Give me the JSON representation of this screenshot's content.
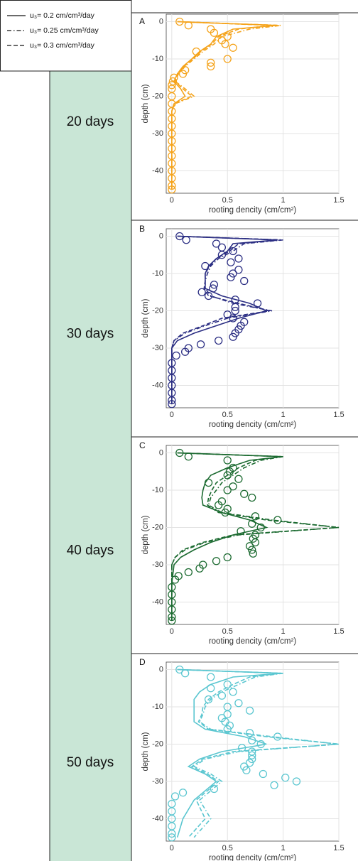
{
  "chart_data": [
    {
      "type": "line",
      "panel_label": "A",
      "days": "20 days",
      "color": "#f5a31a",
      "xlabel": "rooting dencity (cm/cm²)",
      "ylabel": "depth (cm)",
      "xlim": [
        -0.05,
        1.5
      ],
      "ylim": [
        -46,
        2
      ],
      "xticks": [
        0,
        0.5,
        1,
        1.5
      ],
      "yticks": [
        0,
        -10,
        -20,
        -30,
        -40
      ],
      "grid": true,
      "depth": [
        0,
        -1,
        -2,
        -4,
        -6,
        -8,
        -10,
        -12,
        -14,
        -16,
        -18,
        -20,
        -22,
        -24,
        -26,
        -28,
        -30,
        -35,
        -40,
        -45
      ],
      "series": [
        {
          "name": "u₃= 0.2 cm/cm³/day",
          "linestyle": "solid",
          "values": [
            0.05,
            0.95,
            0.55,
            0.4,
            0.35,
            0.25,
            0.18,
            0.1,
            0.05,
            0.02,
            0.08,
            0.12,
            0.02,
            0,
            0,
            0,
            0,
            0,
            0,
            0
          ]
        },
        {
          "name": "u₃= 0.25 cm/cm³/day",
          "linestyle": "dashdot",
          "values": [
            0.05,
            0.98,
            0.7,
            0.45,
            0.38,
            0.28,
            0.2,
            0.12,
            0.06,
            0.03,
            0.12,
            0.2,
            0.03,
            0,
            0,
            0,
            0,
            0,
            0,
            0
          ]
        },
        {
          "name": "u₃= 0.3 cm/cm³/day",
          "linestyle": "dashed",
          "values": [
            0.05,
            0.9,
            0.6,
            0.42,
            0.36,
            0.26,
            0.19,
            0.11,
            0.05,
            0.03,
            0.1,
            0.18,
            0.02,
            0,
            0,
            0,
            0,
            0,
            0,
            0
          ]
        }
      ],
      "observed": {
        "depth": [
          0,
          -1,
          -2,
          -3,
          -4,
          -5,
          -6,
          -7,
          -8,
          -10,
          -11,
          -12,
          -13,
          -14,
          -15,
          -16,
          -17,
          -18,
          -20,
          -22,
          -24,
          -26,
          -28,
          -30,
          -32,
          -34,
          -36,
          -38,
          -40,
          -42,
          -44,
          -45
        ],
        "values": [
          0.07,
          0.15,
          0.35,
          0.38,
          0.5,
          0.45,
          0.48,
          0.55,
          0.22,
          0.5,
          0.35,
          0.35,
          0.12,
          0.1,
          0.02,
          0.01,
          0,
          0,
          0,
          0,
          0,
          0,
          0,
          0,
          0,
          0,
          0,
          0,
          0,
          0,
          0,
          0
        ]
      }
    },
    {
      "type": "line",
      "panel_label": "B",
      "days": "30 days",
      "color": "#2b2e83",
      "xlabel": "rooting dencity (cm/cm²)",
      "ylabel": "depth (cm)",
      "xlim": [
        -0.05,
        1.5
      ],
      "ylim": [
        -46,
        2
      ],
      "xticks": [
        0,
        0.5,
        1,
        1.5
      ],
      "yticks": [
        0,
        -10,
        -20,
        -30,
        -40
      ],
      "grid": true,
      "depth": [
        0,
        -1,
        -2,
        -4,
        -6,
        -8,
        -10,
        -12,
        -14,
        -16,
        -18,
        -20,
        -22,
        -24,
        -26,
        -28,
        -30,
        -35,
        -40,
        -45
      ],
      "series": [
        {
          "linestyle": "solid",
          "values": [
            0.05,
            0.95,
            0.55,
            0.5,
            0.4,
            0.33,
            0.3,
            0.3,
            0.3,
            0.45,
            0.7,
            0.85,
            0.6,
            0.4,
            0.2,
            0.05,
            0,
            0,
            0,
            0
          ]
        },
        {
          "linestyle": "dashdot",
          "values": [
            0.05,
            1.0,
            0.65,
            0.55,
            0.42,
            0.35,
            0.32,
            0.3,
            0.3,
            0.35,
            0.55,
            0.9,
            0.5,
            0.3,
            0.12,
            0.02,
            0,
            0,
            0,
            0
          ]
        },
        {
          "linestyle": "dashed",
          "values": [
            0.05,
            0.98,
            0.6,
            0.52,
            0.4,
            0.34,
            0.3,
            0.3,
            0.29,
            0.33,
            0.6,
            0.88,
            0.45,
            0.28,
            0.1,
            0.02,
            0,
            0,
            0,
            0
          ]
        }
      ],
      "observed": {
        "depth": [
          0,
          -1,
          -2,
          -3,
          -4,
          -5,
          -6,
          -7,
          -8,
          -9,
          -10,
          -11,
          -12,
          -13,
          -14,
          -15,
          -16,
          -17,
          -18,
          -19,
          -20,
          -21,
          -22,
          -23,
          -24,
          -25,
          -26,
          -27,
          -28,
          -29,
          -30,
          -31,
          -32,
          -34,
          -36,
          -38,
          -40,
          -42,
          -44,
          -45
        ],
        "values": [
          0.07,
          0.13,
          0.4,
          0.45,
          0.55,
          0.45,
          0.6,
          0.53,
          0.3,
          0.6,
          0.55,
          0.53,
          0.65,
          0.38,
          0.37,
          0.27,
          0.33,
          0.57,
          0.77,
          0.57,
          0.57,
          0.5,
          0.55,
          0.65,
          0.62,
          0.6,
          0.57,
          0.55,
          0.42,
          0.26,
          0.15,
          0.12,
          0.04,
          0,
          0,
          0,
          0,
          0,
          0,
          0
        ]
      }
    },
    {
      "type": "line",
      "panel_label": "C",
      "days": "40 days",
      "color": "#1b6a30",
      "xlabel": "rooting dencity (cm/cm²)",
      "ylabel": "depth (cm)",
      "xlim": [
        -0.05,
        1.5
      ],
      "ylim": [
        -46,
        2
      ],
      "xticks": [
        0,
        0.5,
        1,
        1.5
      ],
      "yticks": [
        0,
        -10,
        -20,
        -30,
        -40
      ],
      "grid": true,
      "depth": [
        0,
        -1,
        -2,
        -4,
        -6,
        -8,
        -10,
        -12,
        -14,
        -16,
        -18,
        -20,
        -22,
        -24,
        -26,
        -28,
        -30,
        -35,
        -40,
        -45
      ],
      "series": [
        {
          "linestyle": "solid",
          "values": [
            0.05,
            1.0,
            0.7,
            0.5,
            0.35,
            0.3,
            0.28,
            0.27,
            0.28,
            0.45,
            0.7,
            0.85,
            0.55,
            0.35,
            0.2,
            0.08,
            0.02,
            0,
            0,
            0
          ]
        },
        {
          "linestyle": "dashdot",
          "values": [
            0.05,
            1.0,
            0.8,
            0.65,
            0.55,
            0.45,
            0.4,
            0.35,
            0.33,
            0.45,
            0.9,
            1.5,
            0.6,
            0.3,
            0.12,
            0.03,
            0,
            0,
            0,
            0
          ]
        },
        {
          "linestyle": "dashed",
          "values": [
            0.05,
            0.98,
            0.75,
            0.6,
            0.5,
            0.4,
            0.36,
            0.33,
            0.32,
            0.42,
            0.85,
            1.5,
            0.55,
            0.28,
            0.1,
            0.03,
            0,
            0,
            0,
            0
          ]
        }
      ],
      "observed": {
        "depth": [
          0,
          -1,
          -2,
          -4,
          -5,
          -6,
          -7,
          -8,
          -9,
          -10,
          -11,
          -12,
          -13,
          -14,
          -15,
          -16,
          -17,
          -18,
          -19,
          -20,
          -21,
          -22,
          -23,
          -24,
          -25,
          -26,
          -27,
          -28,
          -29,
          -30,
          -31,
          -32,
          -33,
          -34,
          -36,
          -38,
          -40,
          -42,
          -44,
          -45
        ],
        "values": [
          0.07,
          0.15,
          0.5,
          0.55,
          0.52,
          0.5,
          0.6,
          0.33,
          0.55,
          0.5,
          0.65,
          0.72,
          0.45,
          0.42,
          0.5,
          0.48,
          0.75,
          0.95,
          0.72,
          0.8,
          0.62,
          0.75,
          0.73,
          0.75,
          0.7,
          0.72,
          0.73,
          0.5,
          0.4,
          0.28,
          0.25,
          0.15,
          0.06,
          0.03,
          0,
          0,
          0,
          0,
          0,
          0
        ]
      }
    },
    {
      "type": "line",
      "panel_label": "D",
      "days": "50 days",
      "color": "#5ac6d0",
      "xlabel": "rooting dencity (cm/cm²)",
      "ylabel": "depth (cm)",
      "xlim": [
        -0.05,
        1.5
      ],
      "ylim": [
        -46,
        2
      ],
      "xticks": [
        0,
        0.5,
        1,
        1.5
      ],
      "yticks": [
        0,
        -10,
        -20,
        -30,
        -40
      ],
      "grid": true,
      "depth": [
        0,
        -1,
        -2,
        -4,
        -6,
        -8,
        -10,
        -12,
        -14,
        -16,
        -18,
        -20,
        -22,
        -24,
        -26,
        -28,
        -30,
        -35,
        -40,
        -45
      ],
      "series": [
        {
          "linestyle": "solid",
          "values": [
            0.05,
            1.0,
            0.55,
            0.35,
            0.25,
            0.2,
            0.2,
            0.2,
            0.2,
            0.3,
            0.65,
            0.85,
            0.45,
            0.25,
            0.15,
            0.3,
            0.4,
            0.2,
            0.1,
            0.05
          ]
        },
        {
          "linestyle": "dashdot",
          "values": [
            0.05,
            1.0,
            0.75,
            0.6,
            0.45,
            0.35,
            0.3,
            0.28,
            0.25,
            0.35,
            0.9,
            1.5,
            0.6,
            0.3,
            0.2,
            0.35,
            0.45,
            0.25,
            0.35,
            0.2
          ]
        },
        {
          "linestyle": "dashed",
          "values": [
            0.05,
            0.98,
            0.7,
            0.55,
            0.42,
            0.33,
            0.28,
            0.27,
            0.24,
            0.33,
            0.85,
            1.5,
            0.55,
            0.28,
            0.18,
            0.32,
            0.42,
            0.22,
            0.3,
            0.15
          ]
        }
      ],
      "observed": {
        "depth": [
          0,
          -1,
          -2,
          -4,
          -5,
          -6,
          -7,
          -8,
          -9,
          -10,
          -11,
          -12,
          -13,
          -14,
          -15,
          -16,
          -17,
          -18,
          -19,
          -20,
          -21,
          -22,
          -23,
          -24,
          -25,
          -26,
          -27,
          -28,
          -29,
          -30,
          -31,
          -32,
          -33,
          -34,
          -36,
          -38,
          -40,
          -42,
          -44,
          -45
        ],
        "values": [
          0.07,
          0.12,
          0.35,
          0.5,
          0.35,
          0.55,
          0.45,
          0.33,
          0.6,
          0.5,
          0.7,
          0.5,
          0.45,
          0.48,
          0.52,
          0.5,
          0.7,
          0.95,
          0.72,
          0.8,
          0.63,
          0.72,
          0.72,
          0.72,
          0.7,
          0.65,
          0.67,
          0.82,
          1.02,
          1.12,
          0.92,
          0.38,
          0.1,
          0.03,
          0,
          0,
          0,
          0,
          0,
          0
        ]
      }
    }
  ]
}
